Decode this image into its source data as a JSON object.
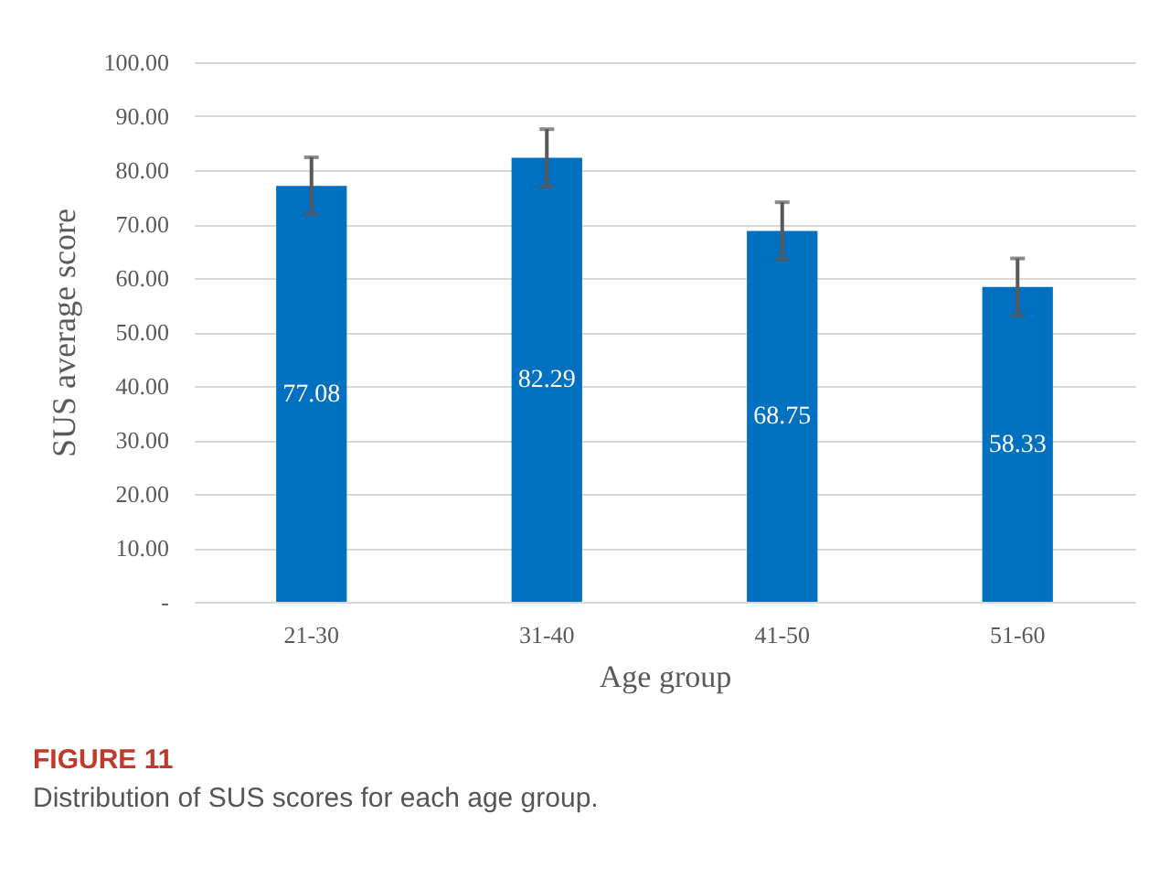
{
  "chart_data": {
    "type": "bar",
    "title": "FIGURE 11",
    "subtitle": "Distribution of SUS scores for each age group.",
    "xlabel": "Age group",
    "ylabel": "SUS  average score",
    "categories": [
      "21-30",
      "31-40",
      "41-50",
      "51-60"
    ],
    "values": [
      77.08,
      82.29,
      68.75,
      58.33
    ],
    "color": "#0070c0",
    "errors": [
      5.3,
      5.3,
      5.3,
      5.3
    ],
    "data_labels": true,
    "ylim": [
      0,
      100
    ],
    "yticks": [
      {
        "value": 0,
        "label": "-"
      },
      {
        "value": 10,
        "label": "10.00"
      },
      {
        "value": 20,
        "label": "20.00"
      },
      {
        "value": 30,
        "label": "30.00"
      },
      {
        "value": 40,
        "label": "40.00"
      },
      {
        "value": 50,
        "label": "50.00"
      },
      {
        "value": 60,
        "label": "60.00"
      },
      {
        "value": 70,
        "label": "70.00"
      },
      {
        "value": 80,
        "label": "80.00"
      },
      {
        "value": 90,
        "label": "90.00"
      },
      {
        "value": 100,
        "label": "100.00"
      }
    ],
    "grid": "y"
  }
}
